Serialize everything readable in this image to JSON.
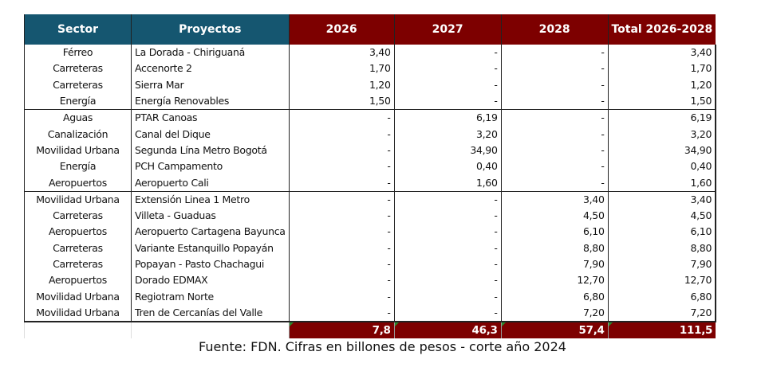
{
  "headers": [
    "Sector",
    "Proyectos",
    "2026",
    "2027",
    "2028",
    "Total 2026-2028"
  ],
  "rows": [
    [
      "Férreo",
      "La Dorada - Chiriguaná",
      "3,40",
      "-",
      "-",
      "3,40"
    ],
    [
      "Carreteras",
      "Accenorte 2",
      "1,70",
      "-",
      "-",
      "1,70"
    ],
    [
      "Carreteras",
      "Sierra Mar",
      "1,20",
      "-",
      "-",
      "1,20"
    ],
    [
      "Energía",
      "Energía Renovables",
      "1,50",
      "-",
      "-",
      "1,50"
    ],
    [
      "Aguas",
      "PTAR Canoas",
      "-",
      "6,19",
      "-",
      "6,19"
    ],
    [
      "Canalización",
      "Canal del Dique",
      "-",
      "3,20",
      "-",
      "3,20"
    ],
    [
      "Movilidad Urbana",
      "Segunda Lína Metro Bogotá",
      "-",
      "34,90",
      "-",
      "34,90"
    ],
    [
      "Energía",
      "PCH Campamento",
      "-",
      "0,40",
      "-",
      "0,40"
    ],
    [
      "Aeropuertos",
      "Aeropuerto Cali",
      "-",
      "1,60",
      "-",
      "1,60"
    ],
    [
      "Movilidad Urbana",
      "Extensión Linea 1  Metro",
      "-",
      "-",
      "3,40",
      "3,40"
    ],
    [
      "Carreteras",
      "Villeta - Guaduas",
      "-",
      "-",
      "4,50",
      "4,50"
    ],
    [
      "Aeropuertos",
      "Aeropuerto Cartagena Bayunca",
      "-",
      "-",
      "6,10",
      "6,10"
    ],
    [
      "Carreteras",
      "Variante Estanquillo Popayán",
      "-",
      "-",
      "8,80",
      "8,80"
    ],
    [
      "Carreteras",
      "Popayan - Pasto Chachagui",
      "-",
      "-",
      "7,90",
      "7,90"
    ],
    [
      "Aeropuertos",
      "Dorado EDMAX",
      "-",
      "-",
      "12,70",
      "12,70"
    ],
    [
      "Movilidad Urbana",
      "Regiotram Norte",
      "-",
      "-",
      "6,80",
      "6,80"
    ],
    [
      "Movilidad Urbana",
      "Tren de Cercanías del Valle",
      "-",
      "-",
      "7,20",
      "7,20"
    ]
  ],
  "totals": [
    "7,8",
    "46,3",
    "57,4",
    "111,5"
  ],
  "caption": "Fuente: FDN. Cifras en billones de pesos - corte año 2024",
  "colors": {
    "teal": "#155670",
    "red": "#7d0000"
  }
}
